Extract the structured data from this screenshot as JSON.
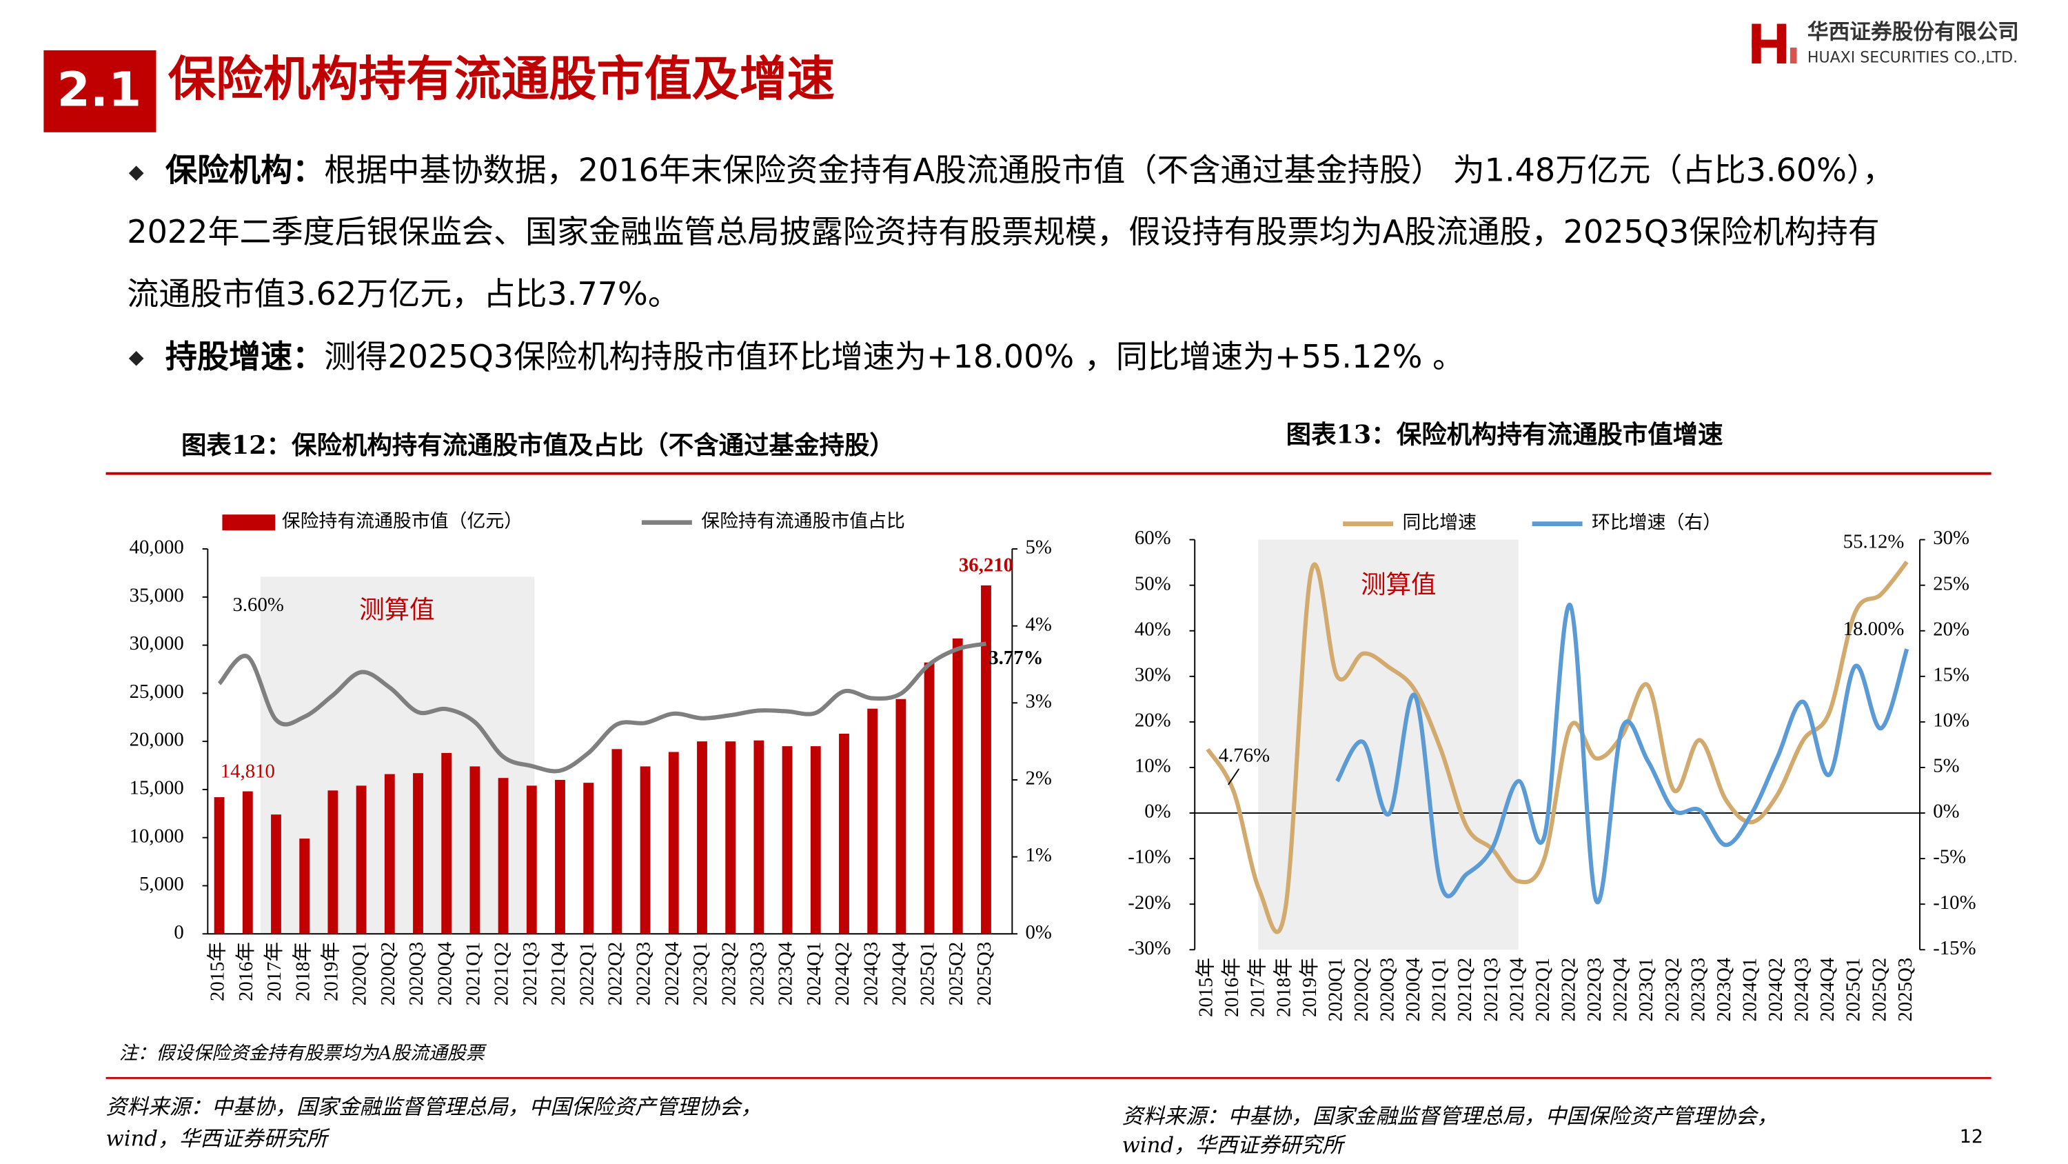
{
  "header": {
    "section": "2.1",
    "title": "保险机构持有流通股市值及增速",
    "company": "华西证券股份有限公司",
    "company_en": "HUAXI SECURITIES CO.,LTD."
  },
  "bullets": [
    {
      "label": "保险机构：",
      "lines": [
        "根据中基协数据，2016年末保险资金持有A股流通股市值（不含通过基金持股） 为1.48万亿元（占比3.60%），",
        "2022年二季度后银保监会、国家金融监管总局披露险资持有股票规模，假设持有股票均为A股流通股，2025Q3保险机构持有",
        "流通股市值3.62万亿元，占比3.77%。"
      ]
    },
    {
      "label": "持股增速：",
      "lines": [
        "测得2025Q3保险机构持股市值环比增速为+18.00% ，同比增速为+55.12% 。"
      ]
    }
  ],
  "chart_data": [
    {
      "type": "combo",
      "title": "图表12：保险机构持有流通股市值及占比（不含通过基金持股）",
      "annotation": "测算值",
      "note": "注：假设保险资金持有股票均为A股流通股票",
      "source": [
        "资料来源：中基协，国家金融监督管理总局，中国保险资产管理协会，",
        "wind，华西证券研究所"
      ],
      "categories": [
        "2015年",
        "2016年",
        "2017年",
        "2018年",
        "2019年",
        "2020Q1",
        "2020Q2",
        "2020Q3",
        "2020Q4",
        "2021Q1",
        "2021Q2",
        "2021Q3",
        "2021Q4",
        "2022Q1",
        "2022Q2",
        "2022Q3",
        "2022Q4",
        "2023Q1",
        "2023Q2",
        "2023Q3",
        "2023Q4",
        "2024Q1",
        "2024Q2",
        "2024Q3",
        "2024Q4",
        "2025Q1",
        "2025Q2",
        "2025Q3"
      ],
      "series": [
        {
          "name": "保险持有流通股市值（亿元）",
          "type": "bar",
          "color": "#c00000",
          "values": [
            14200,
            14810,
            12400,
            9900,
            14900,
            15400,
            16600,
            16700,
            18800,
            17400,
            16200,
            15400,
            16000,
            15700,
            19200,
            17400,
            18900,
            20000,
            20000,
            20100,
            19500,
            19500,
            20800,
            23400,
            24400,
            28200,
            30700,
            36210
          ],
          "value_labels": [
            null,
            "14,810",
            null,
            null,
            null,
            null,
            null,
            null,
            null,
            null,
            null,
            null,
            null,
            null,
            null,
            null,
            null,
            null,
            null,
            null,
            null,
            null,
            null,
            null,
            null,
            null,
            null,
            "36,210"
          ]
        },
        {
          "name": "保险持有流通股市值占比",
          "type": "line",
          "axis": "y2",
          "color": "#7f7f7f",
          "values": [
            3.25,
            3.6,
            2.78,
            2.82,
            3.1,
            3.4,
            3.2,
            2.88,
            2.92,
            2.75,
            2.3,
            2.18,
            2.12,
            2.35,
            2.72,
            2.74,
            2.86,
            2.8,
            2.84,
            2.9,
            2.89,
            2.87,
            3.15,
            3.06,
            3.12,
            3.5,
            3.7,
            3.77
          ],
          "value_labels": [
            null,
            "3.60%",
            null,
            null,
            null,
            null,
            null,
            null,
            null,
            null,
            null,
            null,
            null,
            null,
            null,
            null,
            null,
            null,
            null,
            null,
            null,
            null,
            null,
            null,
            null,
            null,
            null,
            "3.77%"
          ]
        }
      ],
      "ylim": [
        0,
        40000
      ],
      "yticks": [
        0,
        {
          "value": 5000,
          "label": "5,000"
        },
        {
          "value": 10000,
          "label": "10,000"
        },
        {
          "value": 15000,
          "label": "15,000"
        },
        {
          "value": 20000,
          "label": "20,000"
        },
        {
          "value": 25000,
          "label": "25,000"
        },
        {
          "value": 30000,
          "label": "30,000"
        },
        {
          "value": 35000,
          "label": "35,000"
        },
        {
          "value": 40000,
          "label": "40,000"
        }
      ],
      "y2lim": [
        0,
        5
      ],
      "y2ticks": [
        {
          "value": 0,
          "label": "0%"
        },
        {
          "value": 1,
          "label": "1%"
        },
        {
          "value": 2,
          "label": "2%"
        },
        {
          "value": 3,
          "label": "3%"
        },
        {
          "value": 4,
          "label": "4%"
        },
        {
          "value": 5,
          "label": "5%"
        }
      ]
    },
    {
      "type": "line",
      "title": "图表13：保险机构持有流通股市值增速",
      "annotation": "测算值",
      "source": [
        "资料来源：中基协，国家金融监督管理总局，中国保险资产管理协会，",
        "wind，华西证券研究所"
      ],
      "categories": [
        "2015年",
        "2016年",
        "2017年",
        "2018年",
        "2019年",
        "2020Q1",
        "2020Q2",
        "2020Q3",
        "2020Q4",
        "2021Q1",
        "2021Q2",
        "2021Q3",
        "2021Q4",
        "2022Q1",
        "2022Q2",
        "2022Q3",
        "2022Q4",
        "2023Q1",
        "2023Q2",
        "2023Q3",
        "2023Q4",
        "2024Q1",
        "2024Q2",
        "2024Q3",
        "2024Q4",
        "2025Q1",
        "2025Q2",
        "2025Q3"
      ],
      "series": [
        {
          "name": "同比增速",
          "color": "#d2aa6d",
          "values": [
            14,
            4.76,
            -17,
            -21,
            53,
            30,
            35,
            32,
            27,
            14,
            -3,
            -8,
            -15,
            -10,
            19,
            12,
            17,
            28,
            5,
            16,
            3,
            -2,
            4,
            16,
            22,
            44,
            48,
            55.12
          ],
          "value_labels": [
            null,
            "4.76%",
            null,
            null,
            null,
            null,
            null,
            null,
            null,
            null,
            null,
            null,
            null,
            null,
            null,
            null,
            null,
            null,
            null,
            null,
            null,
            null,
            null,
            null,
            null,
            null,
            null,
            "55.12%"
          ]
        },
        {
          "name": "环比增速（右）",
          "axis": "y2",
          "color": "#5b9bd5",
          "values": [
            null,
            null,
            null,
            null,
            null,
            3.5,
            7.8,
            -0.1,
            12.9,
            -7.8,
            -6.7,
            -3.8,
            3.5,
            -2.6,
            22.8,
            -9.6,
            9.3,
            5.7,
            0.3,
            0.3,
            -3.5,
            -0.1,
            6.1,
            12.2,
            4.2,
            16.1,
            9.3,
            18.0
          ],
          "value_labels": [
            null,
            null,
            null,
            null,
            null,
            null,
            null,
            null,
            null,
            null,
            null,
            null,
            null,
            null,
            null,
            null,
            null,
            null,
            null,
            null,
            null,
            null,
            null,
            null,
            null,
            null,
            null,
            "18.00%"
          ]
        }
      ],
      "ylim": [
        -30,
        60
      ],
      "yticks": [
        {
          "value": -30,
          "label": "-30%"
        },
        {
          "value": -20,
          "label": "-20%"
        },
        {
          "value": -10,
          "label": "-10%"
        },
        {
          "value": 0,
          "label": "0%"
        },
        {
          "value": 10,
          "label": "10%"
        },
        {
          "value": 20,
          "label": "20%"
        },
        {
          "value": 30,
          "label": "30%"
        },
        {
          "value": 40,
          "label": "40%"
        },
        {
          "value": 50,
          "label": "50%"
        },
        {
          "value": 60,
          "label": "60%"
        }
      ],
      "y2lim": [
        -15,
        30
      ],
      "y2ticks": [
        {
          "value": -15,
          "label": "-15%"
        },
        {
          "value": -10,
          "label": "-10%"
        },
        {
          "value": -5,
          "label": "-5%"
        },
        {
          "value": 0,
          "label": "0%"
        },
        {
          "value": 5,
          "label": "5%"
        },
        {
          "value": 10,
          "label": "10%"
        },
        {
          "value": 15,
          "label": "15%"
        },
        {
          "value": 20,
          "label": "20%"
        },
        {
          "value": 25,
          "label": "25%"
        },
        {
          "value": 30,
          "label": "30%"
        }
      ]
    }
  ],
  "page_number": "12"
}
